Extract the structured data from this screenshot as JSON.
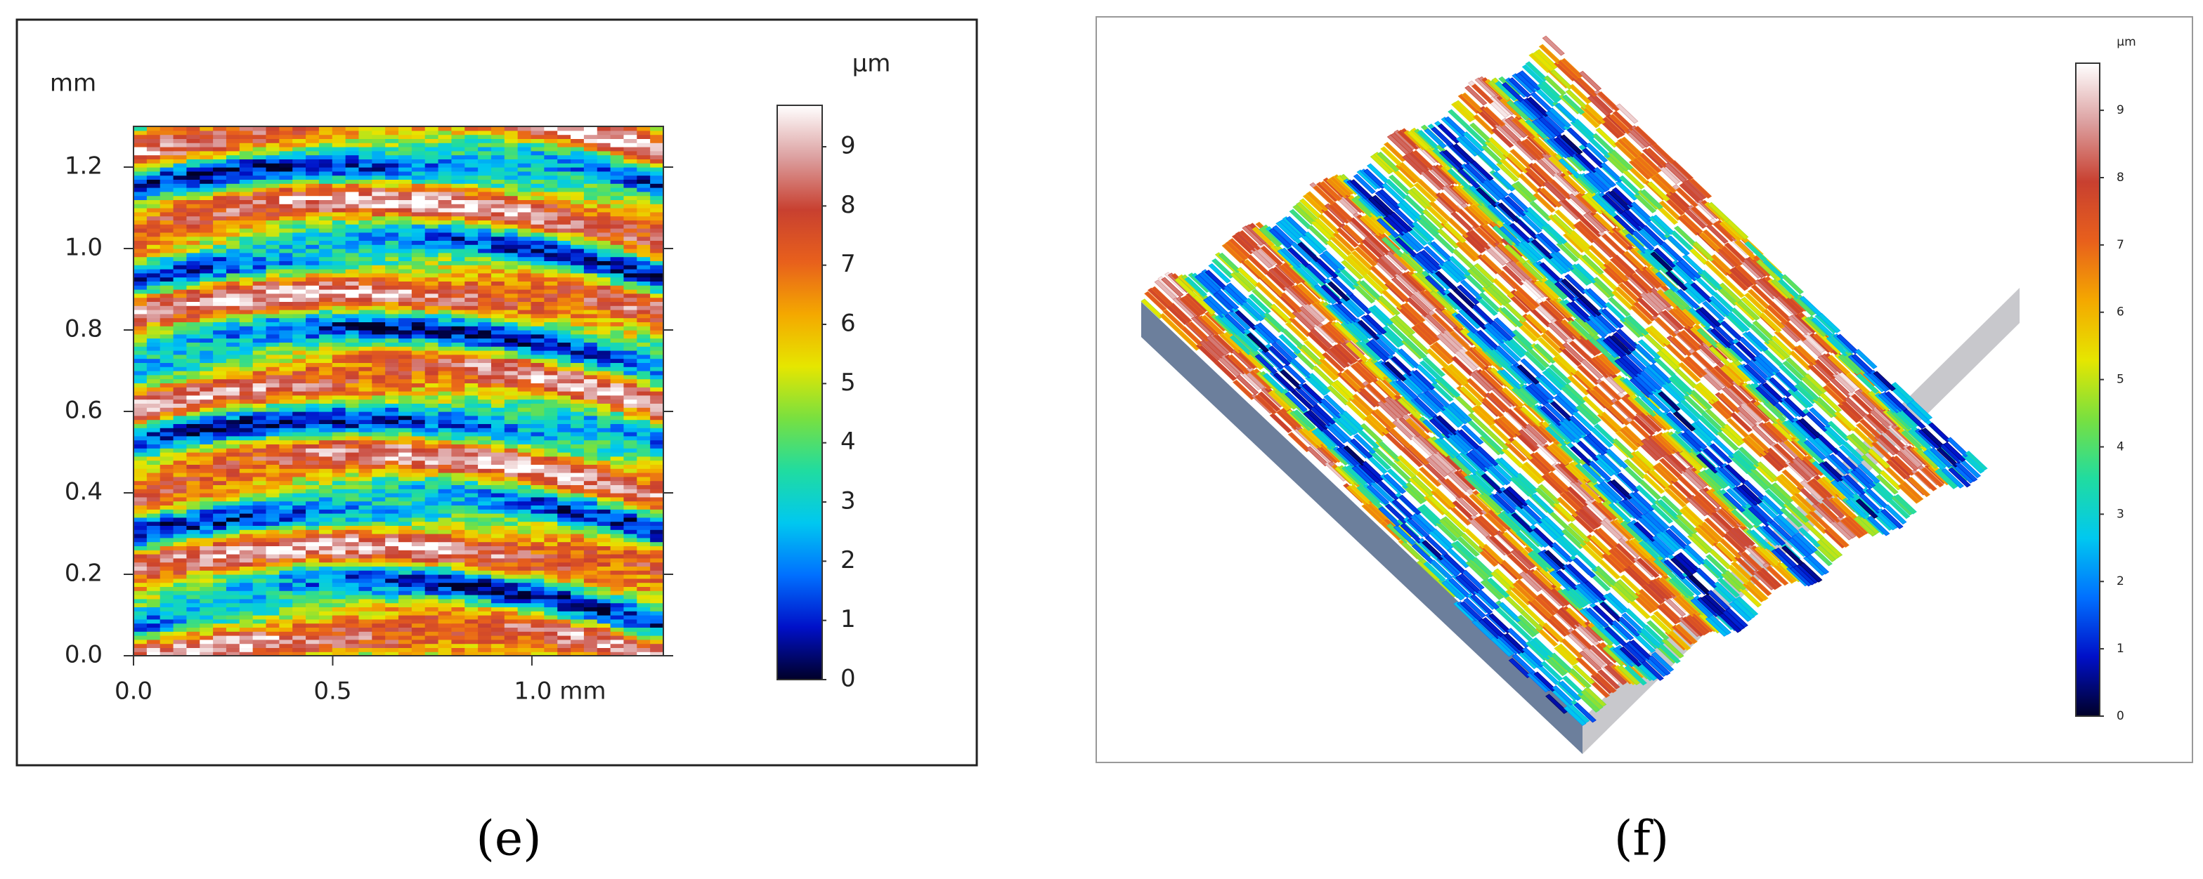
{
  "chart_data": [
    {
      "type": "heatmap",
      "panel_label": "(e)",
      "y_label": "mm",
      "colorbar_label": "µm",
      "xlim": [
        0,
        1.33
      ],
      "xticks": [
        {
          "value": 0,
          "label": "0.0"
        },
        0.5,
        {
          "value": 1,
          "label": "1.0 mm"
        }
      ],
      "ylim": [
        0,
        1.3
      ],
      "yticks": [
        {
          "value": 0,
          "label": "0.0"
        },
        0.2,
        0.4,
        0.6,
        0.8,
        {
          "value": 1,
          "label": "1.0"
        },
        1.2
      ],
      "colorbar_lim": [
        0,
        9.7
      ],
      "colorbar_ticks": [
        0,
        1,
        2,
        3,
        4,
        5,
        6,
        7,
        8,
        9
      ],
      "colormap": [
        "#000028",
        "#0010c8",
        "#0070ff",
        "#00c8f0",
        "#20dca0",
        "#78e040",
        "#e6e600",
        "#f4a800",
        "#e8601c",
        "#c84030",
        "#dca0a0",
        "#ffffff"
      ]
    },
    {
      "type": "surface3d",
      "panel_label": "(f)",
      "colorbar_label": "µm",
      "colorbar_lim": [
        0,
        9.7
      ],
      "colorbar_ticks": [
        0,
        1,
        2,
        3,
        4,
        5,
        6,
        7,
        8,
        9
      ],
      "colormap": [
        "#000028",
        "#0010c8",
        "#0070ff",
        "#00c8f0",
        "#20dca0",
        "#78e040",
        "#e6e600",
        "#f4a800",
        "#e8601c",
        "#c84030",
        "#dca0a0",
        "#ffffff"
      ]
    }
  ]
}
